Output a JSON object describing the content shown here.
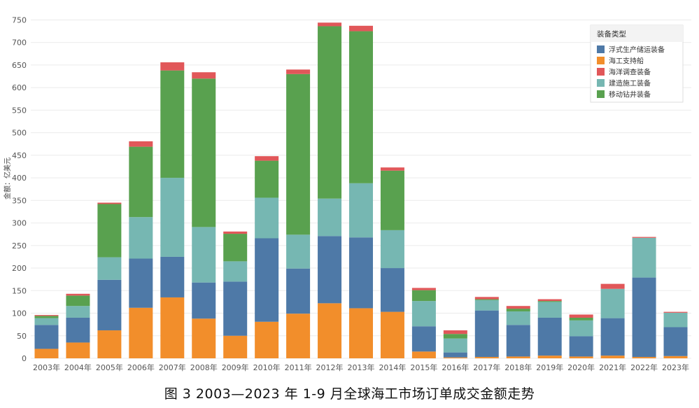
{
  "caption": "图 3 2003—2023 年 1-9 月全球海工市场订单成交金额走势",
  "colors": {
    "floating": "#4e79a7",
    "support": "#f28e2b",
    "survey": "#e15759",
    "construction": "#76b7b2",
    "drilling": "#59a14f"
  },
  "chart_data": {
    "type": "bar",
    "stacked": true,
    "ylabel": "金额：亿美元",
    "ylim": [
      0,
      760
    ],
    "yticks": [
      0,
      50,
      100,
      150,
      200,
      250,
      300,
      350,
      400,
      450,
      500,
      550,
      600,
      650,
      700,
      750
    ],
    "grid": true,
    "legend_title": "装备类型",
    "legend_position": "top-right",
    "categories": [
      "2003年",
      "2004年",
      "2005年",
      "2006年",
      "2007年",
      "2008年",
      "2009年",
      "2010年",
      "2011年",
      "2012年",
      "2013年",
      "2014年",
      "2015年",
      "2016年",
      "2017年",
      "2018年",
      "2019年",
      "2020年",
      "2021年",
      "2022年",
      "2023年"
    ],
    "series": [
      {
        "name": "海工支持船",
        "key": "support",
        "values": [
          21,
          35,
          62,
          112,
          135,
          88,
          50,
          81,
          99,
          122,
          111,
          103,
          15,
          2,
          3,
          4,
          6,
          4,
          6,
          3,
          5
        ]
      },
      {
        "name": "浮式生产储运装备",
        "key": "floating",
        "values": [
          53,
          55,
          112,
          109,
          90,
          80,
          120,
          185,
          100,
          149,
          157,
          97,
          56,
          11,
          103,
          70,
          84,
          45,
          83,
          176,
          64
        ]
      },
      {
        "name": "建造施工装备",
        "key": "construction",
        "values": [
          15,
          26,
          50,
          92,
          175,
          123,
          45,
          90,
          75,
          83,
          120,
          84,
          56,
          31,
          23,
          30,
          35,
          35,
          65,
          88,
          32
        ]
      },
      {
        "name": "移动钻井装备",
        "key": "drilling",
        "values": [
          5,
          23,
          118,
          156,
          238,
          329,
          61,
          82,
          356,
          382,
          337,
          132,
          24,
          10,
          2,
          6,
          2,
          6,
          0,
          0,
          0
        ]
      },
      {
        "name": "海洋调查装备",
        "key": "survey",
        "values": [
          2,
          4,
          3,
          12,
          18,
          14,
          5,
          10,
          10,
          8,
          12,
          7,
          5,
          8,
          5,
          6,
          4,
          7,
          11,
          2,
          2
        ]
      }
    ],
    "legend_order": [
      "floating",
      "support",
      "survey",
      "construction",
      "drilling"
    ]
  }
}
